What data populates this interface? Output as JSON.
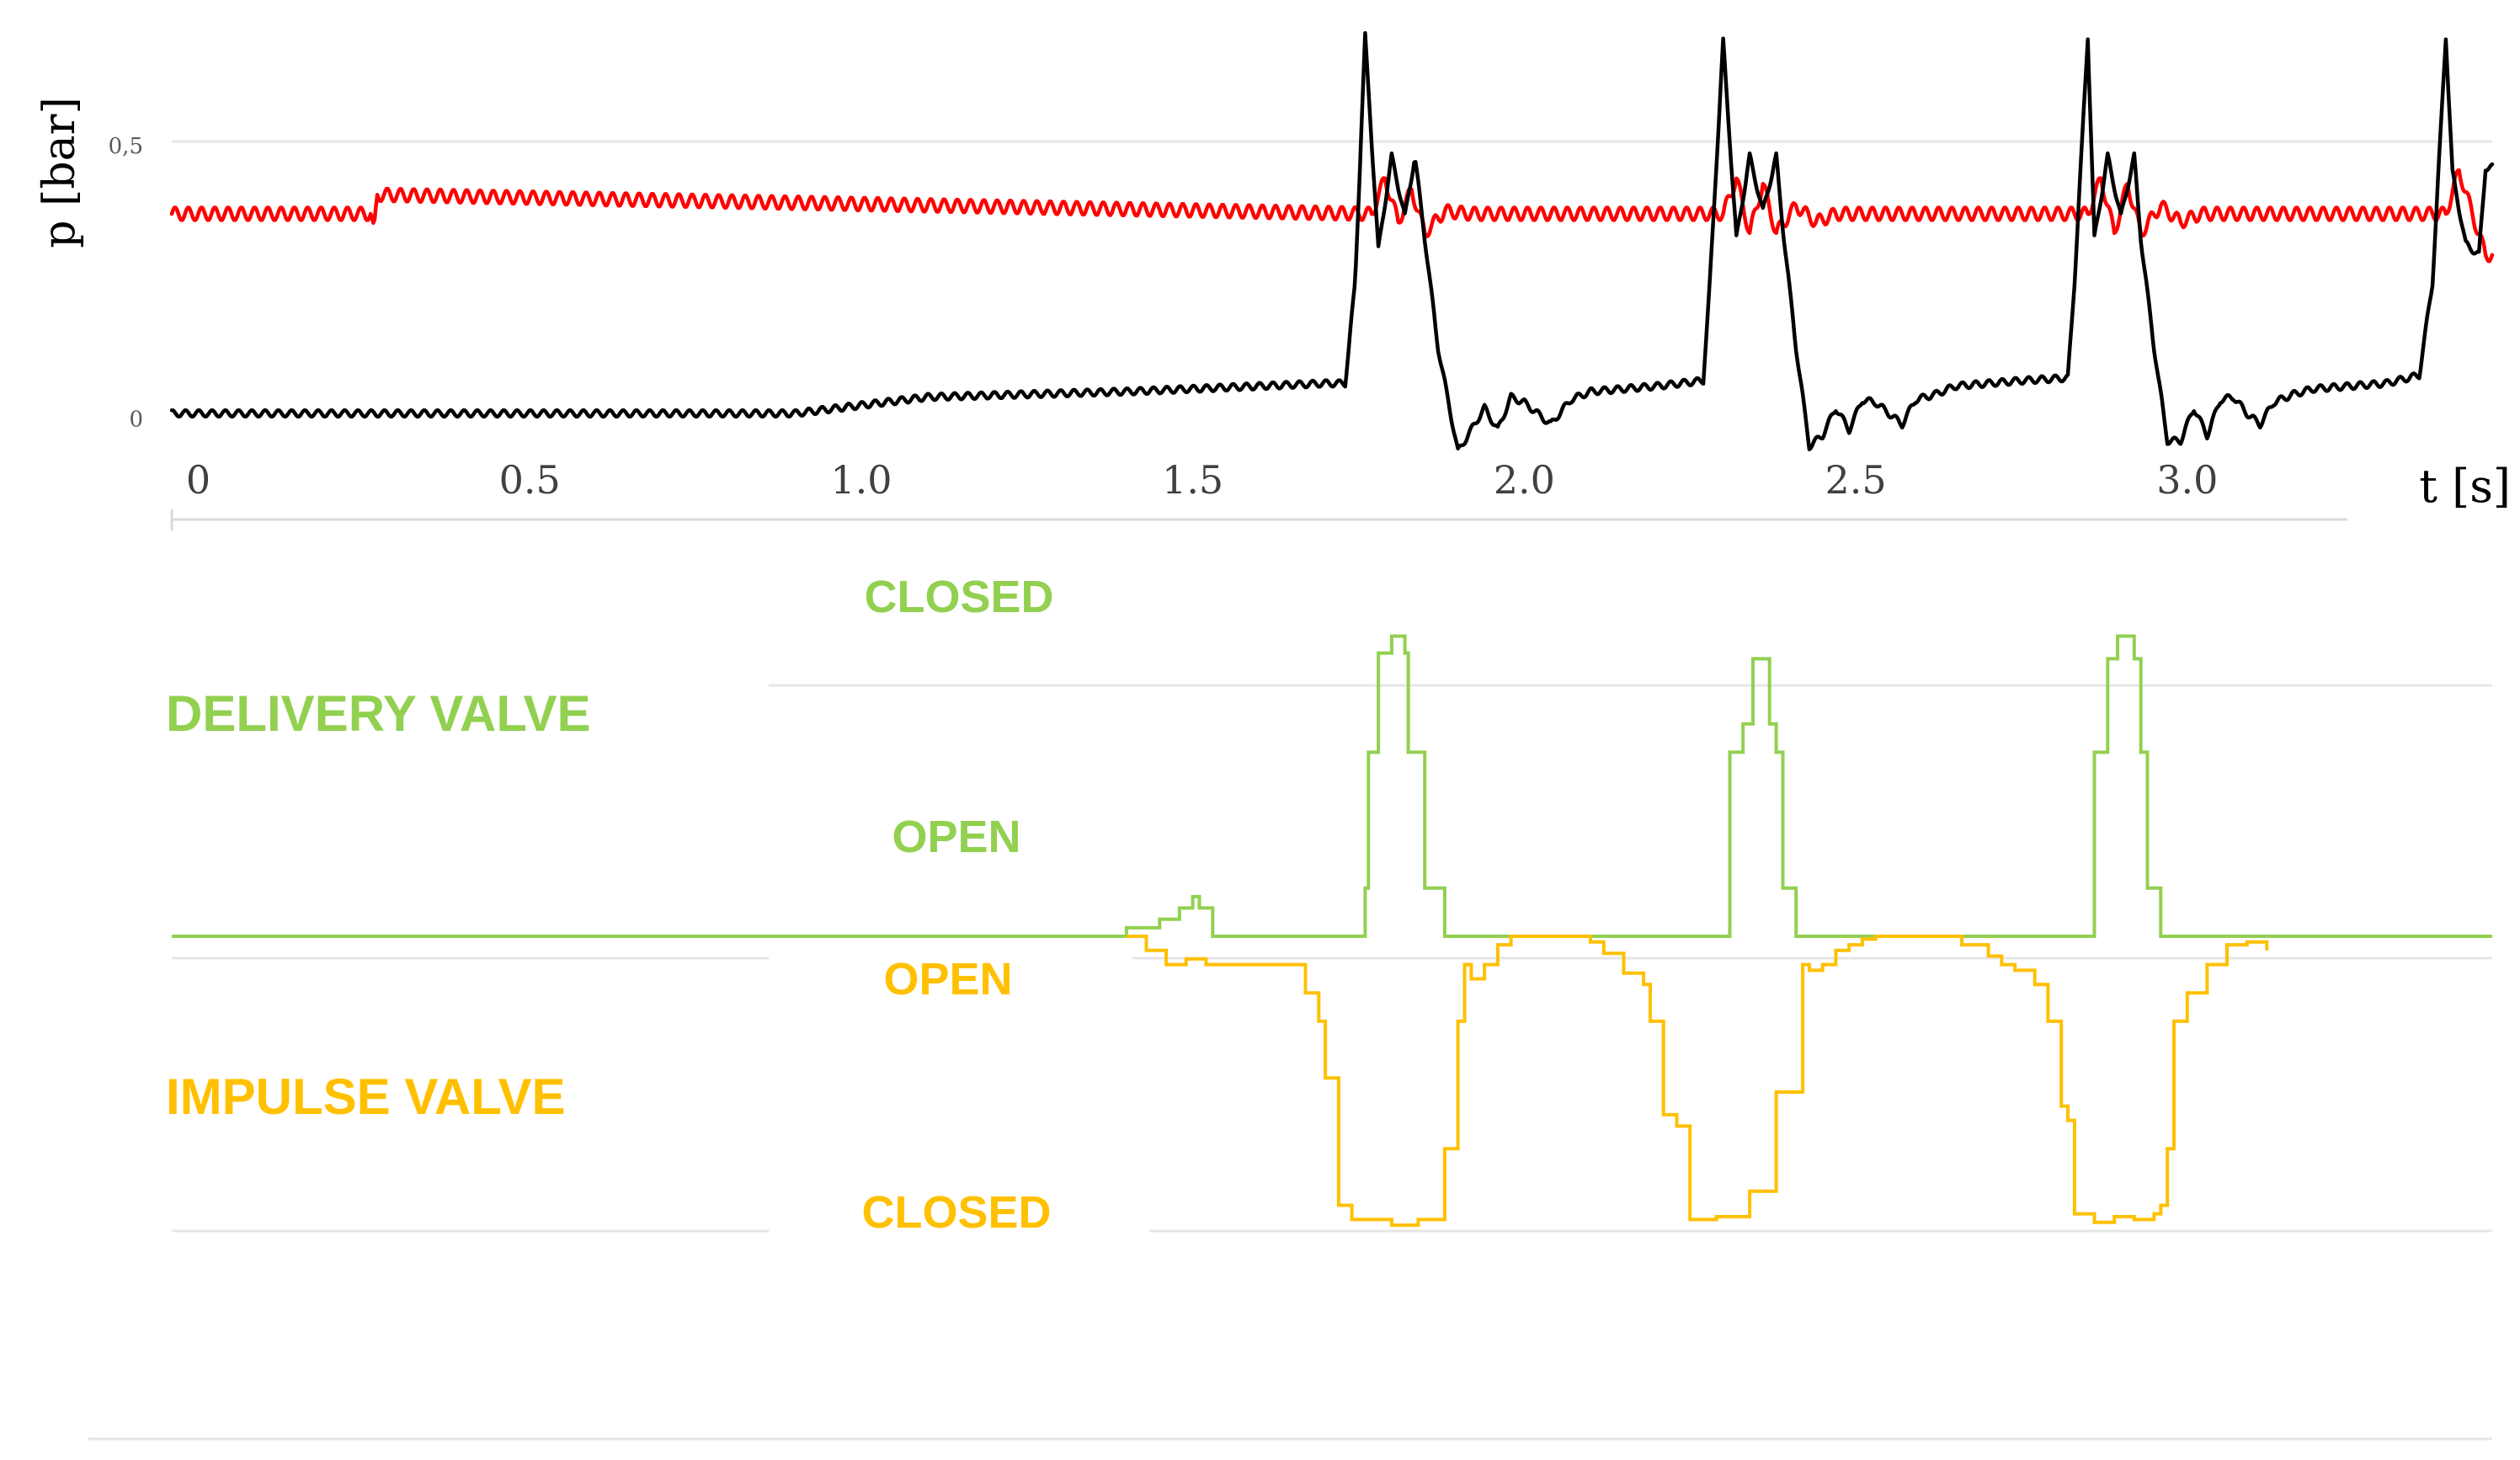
{
  "colors": {
    "background": "#ffffff",
    "series_black": "#000000",
    "series_red": "#ff0000",
    "delivery_valve": "#92d050",
    "impulse_valve": "#ffc000",
    "gridline": "#e6e6e6",
    "axis": "#d9d9d9",
    "tick_text": "#404040",
    "small_tick_text": "#595959"
  },
  "chart_data": [
    {
      "type": "line",
      "title": "",
      "ylabel": "p [bar]",
      "xlabel": "t [s]",
      "xlim": [
        -0.04,
        3.46
      ],
      "ylim": [
        -0.05,
        0.72
      ],
      "y_ticks": [
        {
          "value": 0,
          "label": "0"
        },
        {
          "value": 0.5,
          "label": "0,5"
        }
      ],
      "x_ticks": [
        {
          "value": 0,
          "label": "0"
        },
        {
          "value": 0.5,
          "label": "0.5"
        },
        {
          "value": 1.0,
          "label": "1.0"
        },
        {
          "value": 1.5,
          "label": "1.5"
        },
        {
          "value": 2.0,
          "label": "2.0"
        },
        {
          "value": 2.5,
          "label": "2.5"
        },
        {
          "value": 3.0,
          "label": "3.0"
        }
      ],
      "grid": "horizontal at y = 0.5",
      "series": [
        {
          "color": "#ff0000",
          "baseline": 0.375,
          "oscillation_amplitude": 0.012,
          "x": [
            -0.04,
            0.26,
            0.265,
            0.27,
            1.77,
            1.79,
            1.81,
            1.83,
            1.85,
            1.88,
            1.92,
            2.3,
            2.32,
            2.34,
            2.36,
            2.38,
            2.41,
            2.44,
            2.47,
            2.85,
            2.87,
            2.89,
            2.91,
            2.93,
            2.96,
            2.99,
            3.02,
            3.39,
            3.41,
            3.43,
            3.45
          ],
          "y": [
            0.375,
            0.375,
            0.34,
            0.41,
            0.375,
            0.44,
            0.36,
            0.42,
            0.34,
            0.38,
            0.375,
            0.375,
            0.44,
            0.34,
            0.43,
            0.34,
            0.39,
            0.36,
            0.375,
            0.375,
            0.44,
            0.34,
            0.43,
            0.34,
            0.39,
            0.36,
            0.375,
            0.375,
            0.455,
            0.375,
            0.3
          ]
        },
        {
          "color": "#000000",
          "oscillation_amplitude": 0.006,
          "x": [
            -0.04,
            0.9,
            1.1,
            1.4,
            1.7,
            1.73,
            1.745,
            1.76,
            1.78,
            1.8,
            1.82,
            1.835,
            1.85,
            1.87,
            1.9,
            1.92,
            1.94,
            1.96,
            1.98,
            2.0,
            2.02,
            2.04,
            2.07,
            2.1,
            2.2,
            2.27,
            2.28,
            2.3,
            2.32,
            2.34,
            2.36,
            2.38,
            2.39,
            2.41,
            2.43,
            2.45,
            2.47,
            2.49,
            2.51,
            2.53,
            2.55,
            2.57,
            2.59,
            2.62,
            2.65,
            2.75,
            2.82,
            2.83,
            2.85,
            2.86,
            2.88,
            2.9,
            2.92,
            2.93,
            2.95,
            2.97,
            2.99,
            3.01,
            3.03,
            3.05,
            3.07,
            3.09,
            3.11,
            3.13,
            3.16,
            3.19,
            3.3,
            3.35,
            3.37,
            3.39,
            3.4,
            3.42,
            3.44,
            3.45
          ],
          "y": [
            0.01,
            0.01,
            0.04,
            0.05,
            0.065,
            0.065,
            0.25,
            0.7,
            0.31,
            0.48,
            0.37,
            0.48,
            0.33,
            0.13,
            -0.06,
            -0.02,
            0.02,
            -0.02,
            0.04,
            0.03,
            0.01,
            -0.01,
            0.035,
            0.05,
            0.06,
            0.07,
            0.25,
            0.69,
            0.33,
            0.48,
            0.38,
            0.48,
            0.35,
            0.13,
            -0.05,
            -0.03,
            0.02,
            -0.02,
            0.035,
            0.03,
            0.01,
            -0.01,
            0.035,
            0.045,
            0.06,
            0.07,
            0.075,
            0.25,
            0.7,
            0.33,
            0.48,
            0.37,
            0.48,
            0.33,
            0.13,
            -0.04,
            -0.04,
            0.02,
            -0.03,
            0.035,
            0.04,
            0.01,
            -0.01,
            0.03,
            0.045,
            0.055,
            0.065,
            0.08,
            0.25,
            0.7,
            0.45,
            0.32,
            0.3,
            0.46
          ]
        }
      ]
    },
    {
      "type": "line",
      "title": "",
      "step": true,
      "xlim": [
        -0.04,
        3.46
      ],
      "ylim": [
        -1.1,
        1.1
      ],
      "series": [
        {
          "name": "DELIVERY VALVE",
          "color": "#92d050",
          "x": [
            -0.04,
            1.39,
            1.4,
            1.45,
            1.48,
            1.5,
            1.51,
            1.53,
            1.54,
            1.76,
            1.765,
            1.78,
            1.8,
            1.82,
            1.825,
            1.85,
            1.88,
            2.3,
            2.31,
            2.33,
            2.345,
            2.37,
            2.38,
            2.39,
            2.41,
            2.85,
            2.86,
            2.88,
            2.895,
            2.92,
            2.93,
            2.94,
            2.96,
            3.46
          ],
          "y": [
            0,
            0,
            0.03,
            0.06,
            0.1,
            0.14,
            0.1,
            0,
            0,
            0.17,
            0.65,
            1.0,
            1.06,
            1.0,
            0.65,
            0.17,
            0,
            0,
            0.65,
            0.75,
            0.98,
            0.75,
            0.65,
            0.17,
            0,
            0,
            0.65,
            0.98,
            1.06,
            0.98,
            0.65,
            0.17,
            0,
            0
          ]
        },
        {
          "name": "IMPULSE VALVE",
          "color": "#ffc000",
          "x": [
            1.4,
            1.43,
            1.46,
            1.49,
            1.52,
            1.55,
            1.65,
            1.67,
            1.69,
            1.7,
            1.72,
            1.74,
            1.76,
            1.8,
            1.84,
            1.88,
            1.9,
            1.91,
            1.92,
            1.94,
            1.96,
            1.98,
            2.0,
            2.06,
            2.1,
            2.12,
            2.15,
            2.18,
            2.19,
            2.21,
            2.23,
            2.25,
            2.26,
            2.28,
            2.29,
            2.31,
            2.34,
            2.38,
            2.42,
            2.43,
            2.44,
            2.45,
            2.47,
            2.49,
            2.51,
            2.53,
            2.57,
            2.61,
            2.66,
            2.7,
            2.72,
            2.74,
            2.77,
            2.79,
            2.81,
            2.82,
            2.83,
            2.86,
            2.89,
            2.92,
            2.95,
            2.96,
            2.97,
            2.98,
            3.0,
            3.01,
            3.03,
            3.06,
            3.09,
            3.12
          ],
          "y": [
            0,
            -0.05,
            -0.1,
            -0.08,
            -0.1,
            -0.1,
            -0.1,
            -0.2,
            -0.3,
            -0.5,
            -0.95,
            -1.0,
            -1.0,
            -1.02,
            -1.0,
            -0.75,
            -0.3,
            -0.1,
            -0.15,
            -0.1,
            -0.03,
            0,
            0,
            0,
            -0.02,
            -0.06,
            -0.13,
            -0.17,
            -0.3,
            -0.63,
            -0.67,
            -1.0,
            -1.0,
            -1.0,
            -0.99,
            -0.99,
            -0.9,
            -0.55,
            -0.1,
            -0.12,
            -0.12,
            -0.1,
            -0.05,
            -0.03,
            -0.01,
            0,
            0,
            0,
            -0.03,
            -0.07,
            -0.1,
            -0.12,
            -0.17,
            -0.3,
            -0.6,
            -0.65,
            -0.98,
            -1.01,
            -0.99,
            -1.0,
            -0.98,
            -0.95,
            -0.75,
            -0.3,
            -0.2,
            -0.2,
            -0.1,
            -0.03,
            -0.02,
            -0.05
          ]
        }
      ],
      "level_labels": {
        "delivery_closed": "CLOSED",
        "delivery_open": "OPEN",
        "impulse_open": "OPEN",
        "impulse_closed": "CLOSED"
      }
    }
  ]
}
